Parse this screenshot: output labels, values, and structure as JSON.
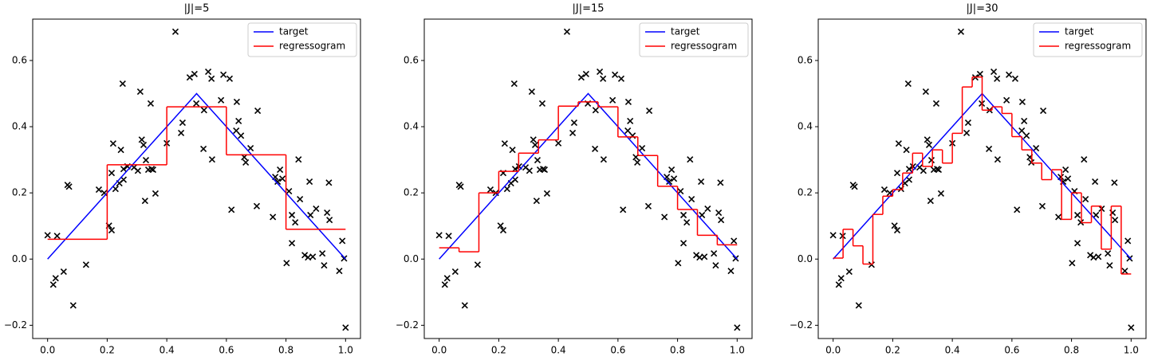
{
  "chart_data": [
    {
      "type": "line",
      "title": "|J|=5",
      "legend": "upper right",
      "xlim": [
        -0.05,
        1.05
      ],
      "ylim": [
        -0.24,
        0.725
      ],
      "xticks": [
        {
          "value": 0,
          "label": "0.0"
        },
        {
          "value": 0.2,
          "label": "0.2"
        },
        {
          "value": 0.4,
          "label": "0.4"
        },
        {
          "value": 0.6,
          "label": "0.6"
        },
        {
          "value": 0.8,
          "label": "0.8"
        },
        {
          "value": 1,
          "label": "1.0"
        }
      ],
      "yticks": [
        {
          "value": -0.2,
          "label": "−0.2"
        },
        {
          "value": 0,
          "label": "0.0"
        },
        {
          "value": 0.2,
          "label": "0.2"
        },
        {
          "value": 0.4,
          "label": "0.4"
        },
        {
          "value": 0.6,
          "label": "0.6"
        }
      ],
      "scatter": {
        "color": "#000000",
        "x": [
          0,
          0.032,
          0.019,
          0.027,
          0.054,
          0.067,
          0.072,
          0.086,
          0.129,
          0.172,
          0.19,
          0.206,
          0.215,
          0.215,
          0.22,
          0.228,
          0.241,
          0.246,
          0.255,
          0.255,
          0.252,
          0.268,
          0.29,
          0.303,
          0.311,
          0.316,
          0.322,
          0.327,
          0.33,
          0.338,
          0.346,
          0.349,
          0.354,
          0.362,
          0.4,
          0.429,
          0.448,
          0.453,
          0.477,
          0.493,
          0.499,
          0.525,
          0.523,
          0.539,
          0.55,
          0.552,
          0.582,
          0.59,
          0.611,
          0.617,
          0.633,
          0.635,
          0.641,
          0.649,
          0.66,
          0.665,
          0.681,
          0.702,
          0.705,
          0.756,
          0.764,
          0.772,
          0.78,
          0.788,
          0.802,
          0.81,
          0.82,
          0.82,
          0.831,
          0.842,
          0.847,
          0.863,
          0.874,
          0.879,
          0.882,
          0.89,
          0.901,
          0.922,
          0.928,
          0.938,
          0.944,
          0.946,
          0.979,
          0.989,
          0.995,
          1.0
        ],
        "values": [
          0.072,
          0.07,
          -0.077,
          -0.058,
          -0.038,
          0.224,
          0.219,
          -0.14,
          -0.017,
          0.21,
          0.2,
          0.101,
          0.087,
          0.26,
          0.349,
          0.212,
          0.229,
          0.33,
          0.24,
          0.272,
          0.53,
          0.28,
          0.277,
          0.267,
          0.506,
          0.361,
          0.345,
          0.176,
          0.299,
          0.27,
          0.47,
          0.272,
          0.27,
          0.198,
          0.35,
          0.687,
          0.381,
          0.412,
          0.549,
          0.559,
          0.47,
          0.45,
          0.333,
          0.566,
          0.545,
          0.301,
          0.48,
          0.557,
          0.545,
          0.149,
          0.388,
          0.475,
          0.417,
          0.373,
          0.308,
          0.292,
          0.335,
          0.16,
          0.448,
          0.127,
          0.248,
          0.234,
          0.27,
          0.243,
          -0.012,
          0.205,
          0.048,
          0.133,
          0.111,
          0.301,
          0.181,
          0.012,
          0.005,
          0.234,
          0.133,
          0.007,
          0.152,
          0.017,
          -0.019,
          0.14,
          0.231,
          0.118,
          -0.036,
          0.055,
          0.002,
          -0.207
        ]
      },
      "series": [
        {
          "name": "target",
          "color": "#0000ff",
          "x": [
            0,
            0.5,
            1
          ],
          "values": [
            0,
            0.5,
            0
          ]
        },
        {
          "name": "regressogram",
          "color": "#ff0000",
          "bins": [
            0,
            0.2,
            0.4,
            0.6,
            0.8,
            1
          ],
          "values": [
            0.06,
            0.285,
            0.46,
            0.315,
            0.09
          ]
        }
      ]
    },
    {
      "type": "line",
      "title": "|J|=15",
      "legend": "upper right",
      "xlim": [
        -0.05,
        1.05
      ],
      "ylim": [
        -0.24,
        0.725
      ],
      "xticks": [
        {
          "value": 0,
          "label": "0.0"
        },
        {
          "value": 0.2,
          "label": "0.2"
        },
        {
          "value": 0.4,
          "label": "0.4"
        },
        {
          "value": 0.6,
          "label": "0.6"
        },
        {
          "value": 0.8,
          "label": "0.8"
        },
        {
          "value": 1,
          "label": "1.0"
        }
      ],
      "yticks": [
        {
          "value": -0.2,
          "label": "−0.2"
        },
        {
          "value": 0,
          "label": "0.0"
        },
        {
          "value": 0.2,
          "label": "0.2"
        },
        {
          "value": 0.4,
          "label": "0.4"
        },
        {
          "value": 0.6,
          "label": "0.6"
        }
      ],
      "scatter": {
        "color": "#000000",
        "x": [
          0,
          0.032,
          0.019,
          0.027,
          0.054,
          0.067,
          0.072,
          0.086,
          0.129,
          0.172,
          0.19,
          0.206,
          0.215,
          0.215,
          0.22,
          0.228,
          0.241,
          0.246,
          0.255,
          0.255,
          0.252,
          0.268,
          0.29,
          0.303,
          0.311,
          0.316,
          0.322,
          0.327,
          0.33,
          0.338,
          0.346,
          0.349,
          0.354,
          0.362,
          0.4,
          0.429,
          0.448,
          0.453,
          0.477,
          0.493,
          0.499,
          0.525,
          0.523,
          0.539,
          0.55,
          0.552,
          0.582,
          0.59,
          0.611,
          0.617,
          0.633,
          0.635,
          0.641,
          0.649,
          0.66,
          0.665,
          0.681,
          0.702,
          0.705,
          0.756,
          0.764,
          0.772,
          0.78,
          0.788,
          0.802,
          0.81,
          0.82,
          0.82,
          0.831,
          0.842,
          0.847,
          0.863,
          0.874,
          0.879,
          0.882,
          0.89,
          0.901,
          0.922,
          0.928,
          0.938,
          0.944,
          0.946,
          0.979,
          0.989,
          0.995,
          1.0
        ],
        "values": [
          0.072,
          0.07,
          -0.077,
          -0.058,
          -0.038,
          0.224,
          0.219,
          -0.14,
          -0.017,
          0.21,
          0.2,
          0.101,
          0.087,
          0.26,
          0.349,
          0.212,
          0.229,
          0.33,
          0.24,
          0.272,
          0.53,
          0.28,
          0.277,
          0.267,
          0.506,
          0.361,
          0.345,
          0.176,
          0.299,
          0.27,
          0.47,
          0.272,
          0.27,
          0.198,
          0.35,
          0.687,
          0.381,
          0.412,
          0.549,
          0.559,
          0.47,
          0.45,
          0.333,
          0.566,
          0.545,
          0.301,
          0.48,
          0.557,
          0.545,
          0.149,
          0.388,
          0.475,
          0.417,
          0.373,
          0.308,
          0.292,
          0.335,
          0.16,
          0.448,
          0.127,
          0.248,
          0.234,
          0.27,
          0.243,
          -0.012,
          0.205,
          0.048,
          0.133,
          0.111,
          0.301,
          0.181,
          0.012,
          0.005,
          0.234,
          0.133,
          0.007,
          0.152,
          0.017,
          -0.019,
          0.14,
          0.231,
          0.118,
          -0.036,
          0.055,
          0.002,
          -0.207
        ]
      },
      "series": [
        {
          "name": "target",
          "color": "#0000ff",
          "x": [
            0,
            0.5,
            1
          ],
          "values": [
            0,
            0.5,
            0
          ]
        },
        {
          "name": "regressogram",
          "color": "#ff0000",
          "bins": [
            0,
            0.0667,
            0.1333,
            0.2,
            0.2667,
            0.3333,
            0.4,
            0.4667,
            0.5333,
            0.6,
            0.6667,
            0.7333,
            0.8,
            0.8667,
            0.9333,
            1
          ],
          "values": [
            0.034,
            0.022,
            0.2,
            0.265,
            0.32,
            0.36,
            0.462,
            0.475,
            0.46,
            0.369,
            0.313,
            0.22,
            0.15,
            0.072,
            0.043
          ]
        }
      ]
    },
    {
      "type": "line",
      "title": "|J|=30",
      "legend": "upper right",
      "xlim": [
        -0.05,
        1.05
      ],
      "ylim": [
        -0.24,
        0.725
      ],
      "xticks": [
        {
          "value": 0,
          "label": "0.0"
        },
        {
          "value": 0.2,
          "label": "0.2"
        },
        {
          "value": 0.4,
          "label": "0.4"
        },
        {
          "value": 0.6,
          "label": "0.6"
        },
        {
          "value": 0.8,
          "label": "0.8"
        },
        {
          "value": 1,
          "label": "1.0"
        }
      ],
      "yticks": [
        {
          "value": -0.2,
          "label": "−0.2"
        },
        {
          "value": 0,
          "label": "0.0"
        },
        {
          "value": 0.2,
          "label": "0.2"
        },
        {
          "value": 0.4,
          "label": "0.4"
        },
        {
          "value": 0.6,
          "label": "0.6"
        }
      ],
      "scatter": {
        "color": "#000000",
        "x": [
          0,
          0.032,
          0.019,
          0.027,
          0.054,
          0.067,
          0.072,
          0.086,
          0.129,
          0.172,
          0.19,
          0.206,
          0.215,
          0.215,
          0.22,
          0.228,
          0.241,
          0.246,
          0.255,
          0.255,
          0.252,
          0.268,
          0.29,
          0.303,
          0.311,
          0.316,
          0.322,
          0.327,
          0.33,
          0.338,
          0.346,
          0.349,
          0.354,
          0.362,
          0.4,
          0.429,
          0.448,
          0.453,
          0.477,
          0.493,
          0.499,
          0.525,
          0.523,
          0.539,
          0.55,
          0.552,
          0.582,
          0.59,
          0.611,
          0.617,
          0.633,
          0.635,
          0.641,
          0.649,
          0.66,
          0.665,
          0.681,
          0.702,
          0.705,
          0.756,
          0.764,
          0.772,
          0.78,
          0.788,
          0.802,
          0.81,
          0.82,
          0.82,
          0.831,
          0.842,
          0.847,
          0.863,
          0.874,
          0.879,
          0.882,
          0.89,
          0.901,
          0.922,
          0.928,
          0.938,
          0.944,
          0.946,
          0.979,
          0.989,
          0.995,
          1.0
        ],
        "values": [
          0.072,
          0.07,
          -0.077,
          -0.058,
          -0.038,
          0.224,
          0.219,
          -0.14,
          -0.017,
          0.21,
          0.2,
          0.101,
          0.087,
          0.26,
          0.349,
          0.212,
          0.229,
          0.33,
          0.24,
          0.272,
          0.53,
          0.28,
          0.277,
          0.267,
          0.506,
          0.361,
          0.345,
          0.176,
          0.299,
          0.27,
          0.47,
          0.272,
          0.27,
          0.198,
          0.35,
          0.687,
          0.381,
          0.412,
          0.549,
          0.559,
          0.47,
          0.45,
          0.333,
          0.566,
          0.545,
          0.301,
          0.48,
          0.557,
          0.545,
          0.149,
          0.388,
          0.475,
          0.417,
          0.373,
          0.308,
          0.292,
          0.335,
          0.16,
          0.448,
          0.127,
          0.248,
          0.234,
          0.27,
          0.243,
          -0.012,
          0.205,
          0.048,
          0.133,
          0.111,
          0.301,
          0.181,
          0.012,
          0.005,
          0.234,
          0.133,
          0.007,
          0.152,
          0.017,
          -0.019,
          0.14,
          0.231,
          0.118,
          -0.036,
          0.055,
          0.002,
          -0.207
        ]
      },
      "series": [
        {
          "name": "target",
          "color": "#0000ff",
          "x": [
            0,
            0.5,
            1
          ],
          "values": [
            0,
            0.5,
            0
          ]
        },
        {
          "name": "regressogram",
          "color": "#ff0000",
          "bins": [
            0,
            0.0333,
            0.0667,
            0.1,
            0.1333,
            0.1667,
            0.2,
            0.2333,
            0.2667,
            0.3,
            0.3333,
            0.3667,
            0.4,
            0.4333,
            0.4667,
            0.5,
            0.5333,
            0.5667,
            0.6,
            0.6333,
            0.6667,
            0.7,
            0.7333,
            0.7667,
            0.8,
            0.8333,
            0.8667,
            0.9,
            0.9333,
            0.9667,
            1
          ],
          "values": [
            0.003,
            0.09,
            0.04,
            -0.015,
            0.135,
            0.19,
            0.21,
            0.26,
            0.32,
            0.28,
            0.33,
            0.29,
            0.38,
            0.52,
            0.55,
            0.45,
            0.46,
            0.44,
            0.37,
            0.33,
            0.29,
            0.24,
            0.27,
            0.12,
            0.2,
            0.11,
            0.16,
            0.03,
            0.16,
            -0.045
          ]
        }
      ]
    }
  ]
}
